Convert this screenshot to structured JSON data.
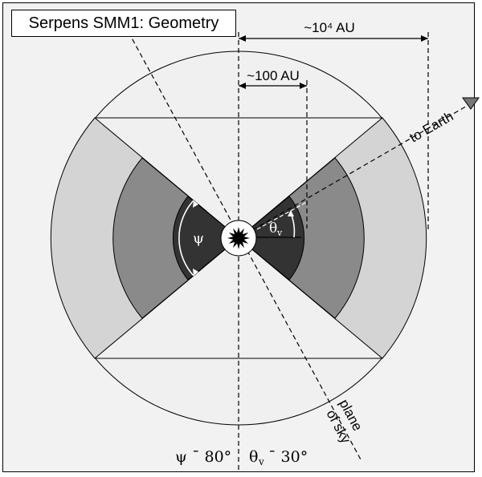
{
  "title": "Serpens SMM1: Geometry",
  "scale_outer": "~10⁴ AU",
  "scale_inner": "~100 AU",
  "earth_label": "to Earth",
  "sky_label_1": "plane",
  "sky_label_2": "of sky",
  "psi_symbol": "ψ",
  "theta_symbol": "θ",
  "theta_sub": "v",
  "bottom_psi": "ψ ˉ 80°",
  "bottom_theta": "θ",
  "bottom_theta_sub": "v",
  "bottom_theta_val": "ˉ 30°",
  "colors": {
    "background": "#f2f2f2",
    "outer_cavity": "#f0f0f0",
    "envelope_light": "#d4d4d4",
    "envelope_mid": "#8a8a8a",
    "envelope_dark": "#333333",
    "star": "#000000"
  }
}
